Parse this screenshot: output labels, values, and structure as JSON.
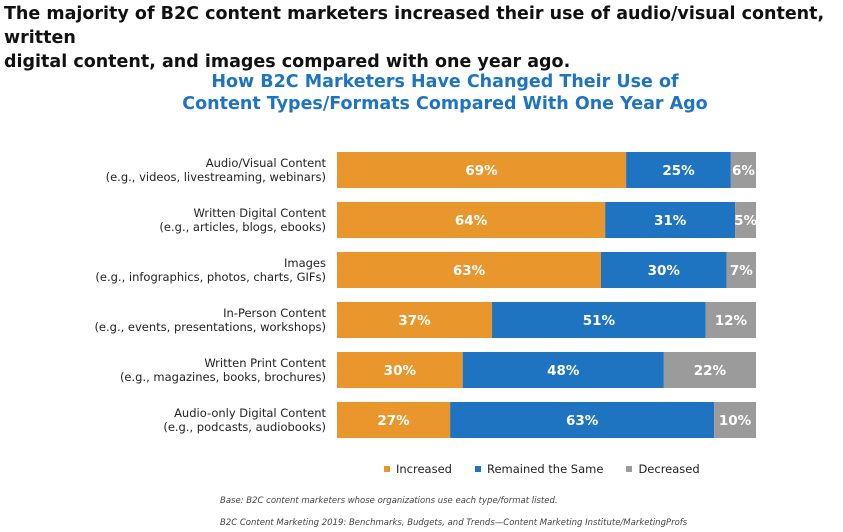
{
  "headline": {
    "line1": "The majority of B2C content marketers increased their use of audio/visual content, written",
    "line2": "digital content, and images compared with one year ago."
  },
  "chart_data": {
    "type": "bar",
    "orientation": "horizontal",
    "stacked": true,
    "title_lines": [
      "How B2C Marketers Have Changed Their Use of",
      "Content Types/Formats Compared With One Year Ago"
    ],
    "categories": [
      [
        "Audio/Visual Content",
        "(e.g., videos, livestreaming, webinars)"
      ],
      [
        "Written Digital Content",
        "(e.g., articles, blogs, ebooks)"
      ],
      [
        "Images",
        "(e.g., infographics, photos, charts, GIFs)"
      ],
      [
        "In-Person Content",
        "(e.g., events, presentations, workshops)"
      ],
      [
        "Written Print Content",
        "(e.g., magazines, books, brochures)"
      ],
      [
        "Audio-only Digital Content",
        "(e.g., podcasts, audiobooks)"
      ]
    ],
    "series": [
      {
        "name": "Increased",
        "color": "#e9962d",
        "values": [
          69,
          64,
          63,
          37,
          30,
          27
        ]
      },
      {
        "name": "Remained the Same",
        "color": "#1f74c2",
        "values": [
          25,
          31,
          30,
          51,
          48,
          63
        ]
      },
      {
        "name": "Decreased",
        "color": "#9b9b9b",
        "values": [
          6,
          5,
          7,
          12,
          22,
          10
        ]
      }
    ],
    "value_suffix": "%",
    "xlim": [
      0,
      100
    ],
    "grid": false,
    "legend_position": "bottom"
  },
  "footnotes": {
    "base": "Base: B2C content marketers whose organizations use each type/format listed.",
    "source": "B2C Content Marketing 2019: Benchmarks, Budgets, and Trends—Content Marketing Institute/MarketingProfs"
  }
}
